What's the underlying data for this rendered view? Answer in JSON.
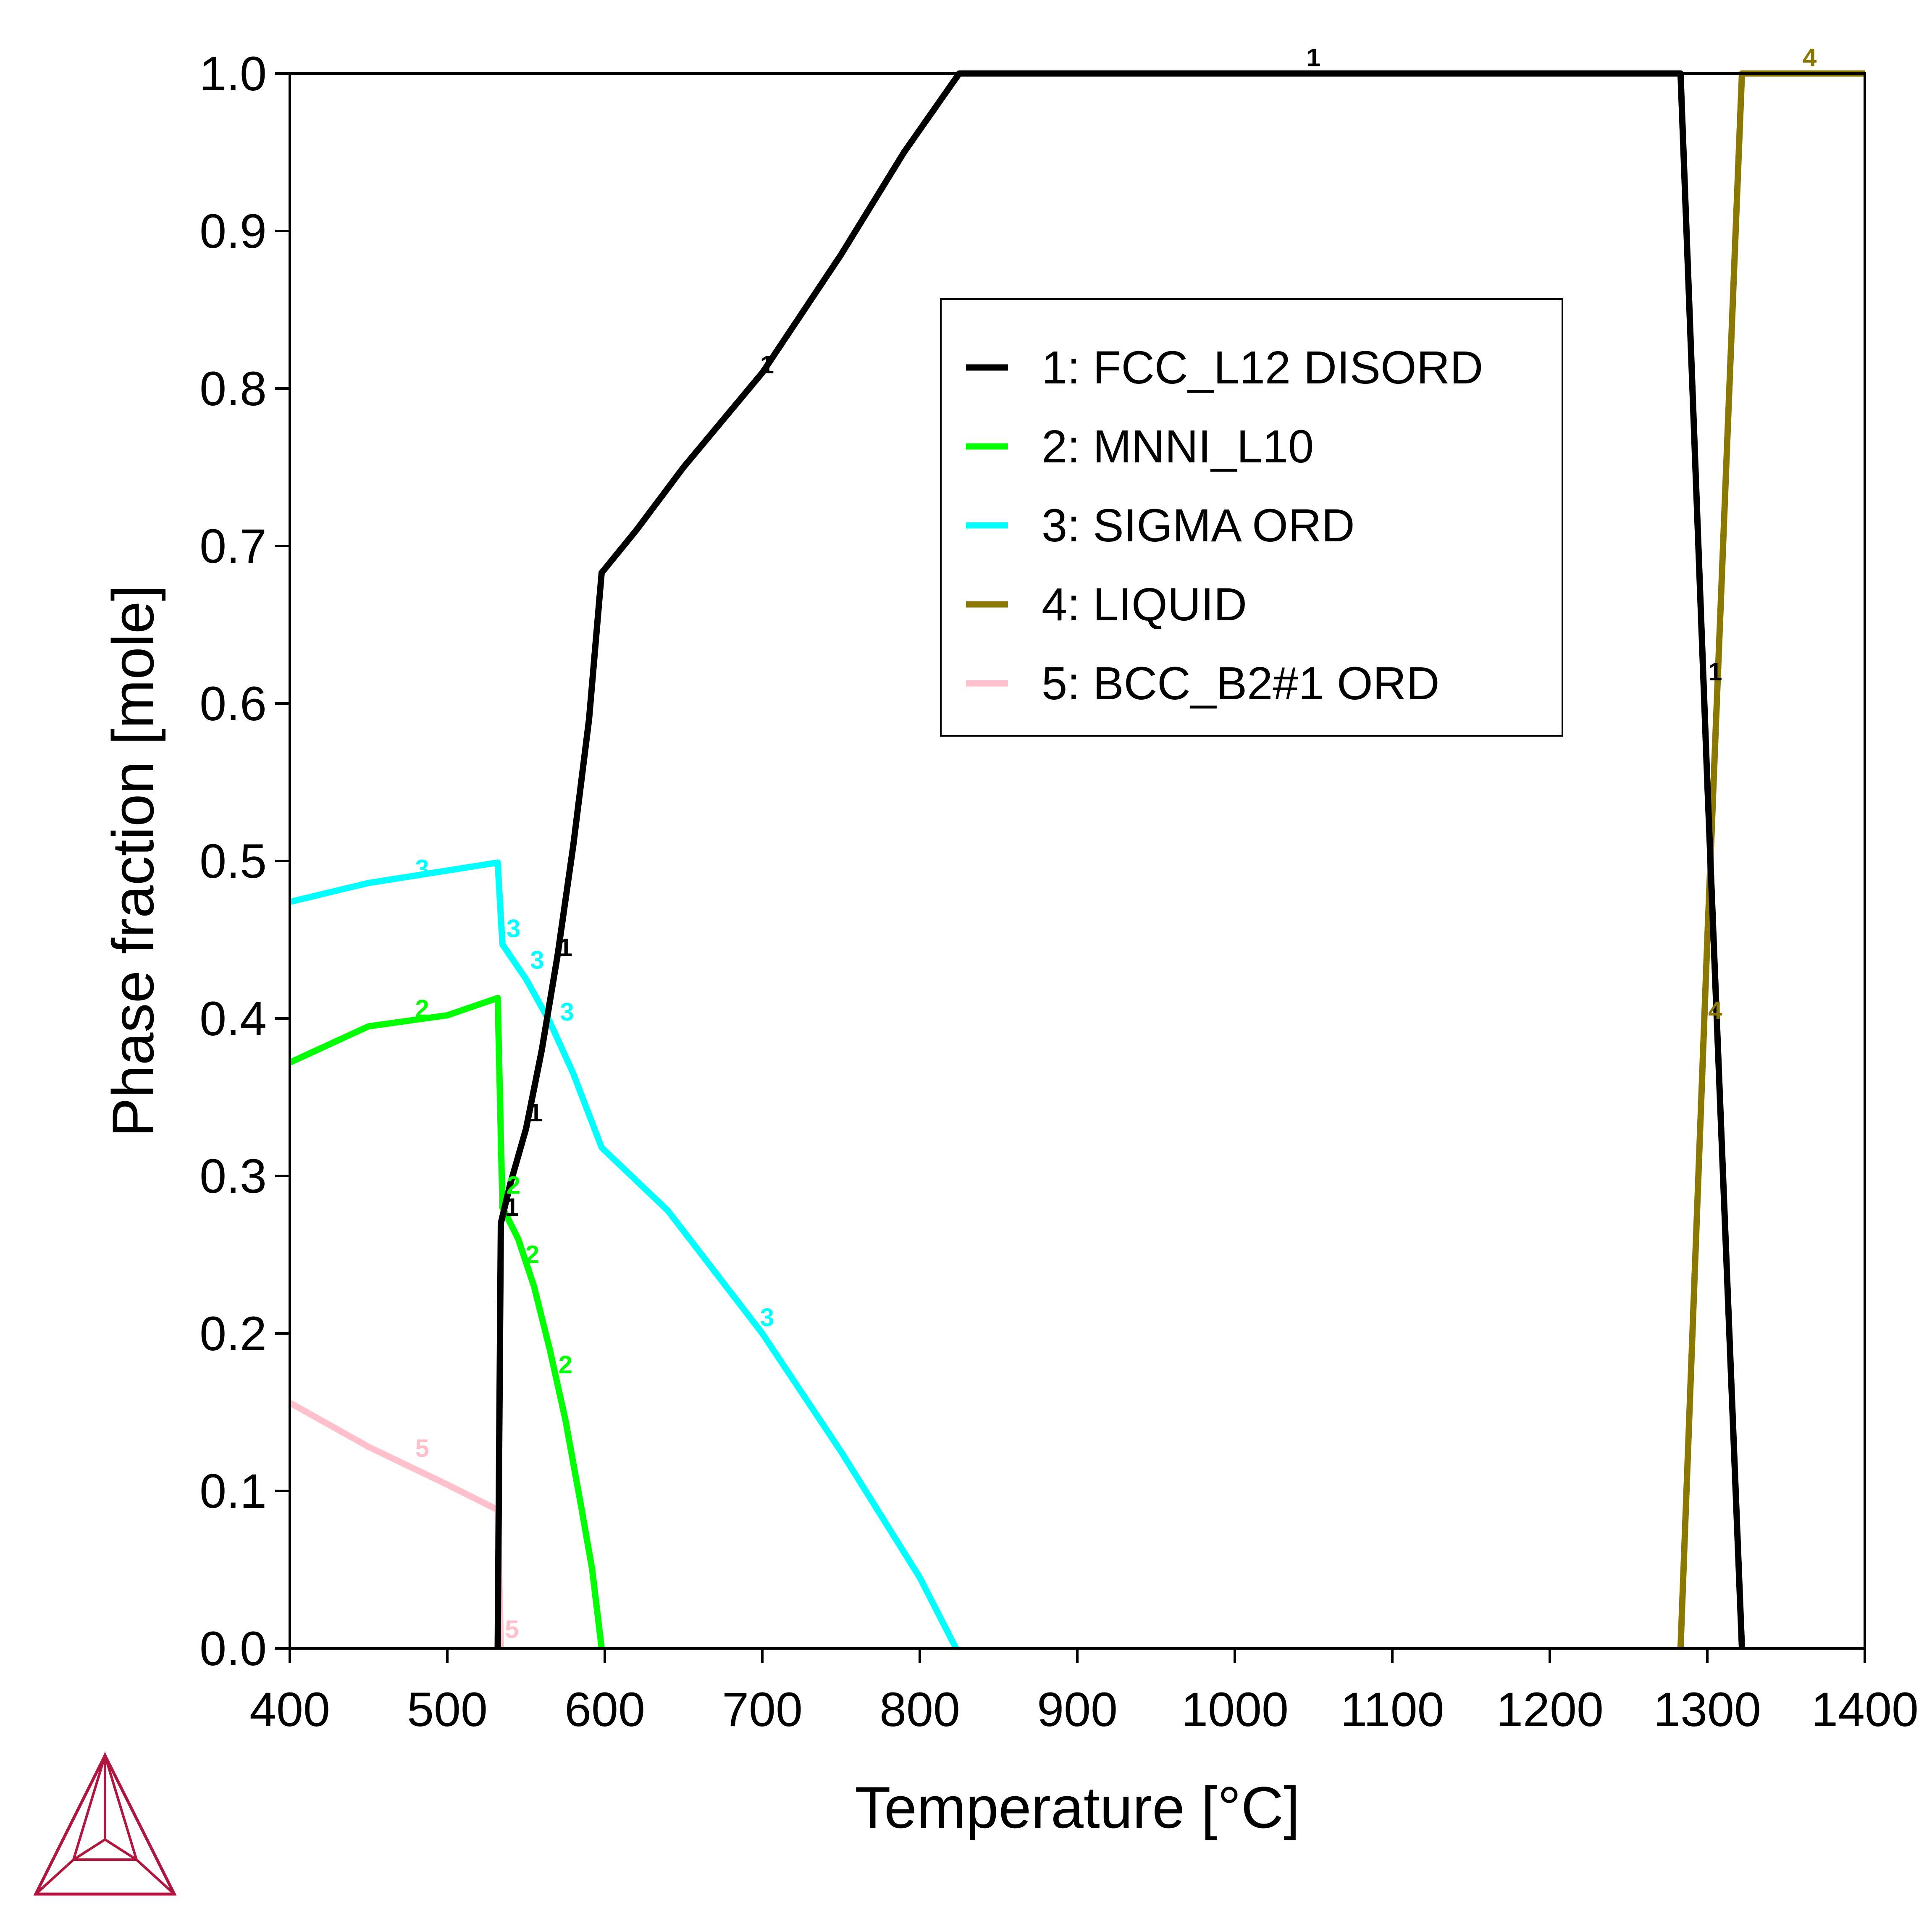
{
  "chart_data": {
    "type": "line",
    "xlabel": "Temperature [°C]",
    "ylabel": "Phase fraction [mole]",
    "xlim": [
      400,
      1400
    ],
    "ylim": [
      0,
      1
    ],
    "xticks": [
      400,
      500,
      600,
      700,
      800,
      900,
      1000,
      1100,
      1200,
      1300,
      1400
    ],
    "yticks": [
      0.0,
      0.1,
      0.2,
      0.3,
      0.4,
      0.5,
      0.6,
      0.7,
      0.8,
      0.9,
      1.0
    ],
    "xtick_labels": [
      "400",
      "500",
      "600",
      "700",
      "800",
      "900",
      "1000",
      "1100",
      "1200",
      "1300",
      "1400"
    ],
    "ytick_labels": [
      "0.0",
      "0.1",
      "0.2",
      "0.3",
      "0.4",
      "0.5",
      "0.6",
      "0.7",
      "0.8",
      "0.9",
      "1.0"
    ],
    "grid": false,
    "legend_position": "upper-right",
    "series": [
      {
        "id": "1",
        "name": "1: FCC_L12 DISORD",
        "color": "#000000",
        "points": [
          [
            532,
            0.0
          ],
          [
            534,
            0.27
          ],
          [
            540,
            0.295
          ],
          [
            550,
            0.33
          ],
          [
            560,
            0.38
          ],
          [
            570,
            0.44
          ],
          [
            580,
            0.51
          ],
          [
            590,
            0.59
          ],
          [
            598,
            0.683
          ],
          [
            620,
            0.71
          ],
          [
            650,
            0.75
          ],
          [
            700,
            0.81
          ],
          [
            750,
            0.885
          ],
          [
            790,
            0.95
          ],
          [
            825,
            1.0
          ],
          [
            1283,
            1.0
          ],
          [
            1300,
            0.55
          ],
          [
            1310,
            0.3
          ],
          [
            1322,
            0.0
          ]
        ],
        "labels": [
          [
            1050,
            1.01
          ],
          [
            703,
            0.815
          ],
          [
            575,
            0.445
          ],
          [
            556,
            0.34
          ],
          [
            541,
            0.28
          ],
          [
            1305,
            0.62
          ]
        ],
        "label_text": "1"
      },
      {
        "id": "2",
        "name": "2: MNNI_L10",
        "color": "#00ff00",
        "points": [
          [
            400,
            0.372
          ],
          [
            450,
            0.395
          ],
          [
            500,
            0.402
          ],
          [
            532,
            0.413
          ],
          [
            535,
            0.28
          ],
          [
            545,
            0.26
          ],
          [
            555,
            0.23
          ],
          [
            565,
            0.19
          ],
          [
            575,
            0.145
          ],
          [
            585,
            0.09
          ],
          [
            592,
            0.05
          ],
          [
            598,
            0.0
          ]
        ],
        "labels": [
          [
            484,
            0.406
          ],
          [
            542,
            0.294
          ],
          [
            554,
            0.25
          ],
          [
            575,
            0.18
          ]
        ],
        "label_text": "2"
      },
      {
        "id": "3",
        "name": "3: SIGMA ORD",
        "color": "#00ffff",
        "points": [
          [
            400,
            0.474
          ],
          [
            450,
            0.486
          ],
          [
            532,
            0.499
          ],
          [
            535,
            0.447
          ],
          [
            550,
            0.425
          ],
          [
            565,
            0.398
          ],
          [
            580,
            0.365
          ],
          [
            598,
            0.318
          ],
          [
            640,
            0.278
          ],
          [
            700,
            0.2
          ],
          [
            750,
            0.125
          ],
          [
            800,
            0.045
          ],
          [
            823,
            0.0
          ]
        ],
        "labels": [
          [
            484,
            0.495
          ],
          [
            542,
            0.457
          ],
          [
            557,
            0.437
          ],
          [
            576,
            0.404
          ],
          [
            703,
            0.21
          ]
        ],
        "label_text": "3"
      },
      {
        "id": "4",
        "name": "4: LIQUID",
        "color": "#8b7800",
        "points": [
          [
            1283,
            0.0
          ],
          [
            1300,
            0.45
          ],
          [
            1322,
            1.0
          ],
          [
            1400,
            1.0
          ]
        ],
        "labels": [
          [
            1365,
            1.01
          ],
          [
            1305,
            0.405
          ]
        ],
        "label_text": "4"
      },
      {
        "id": "5",
        "name": "5: BCC_B2#1 ORD",
        "color": "#ffbfcb",
        "points": [
          [
            400,
            0.156
          ],
          [
            450,
            0.128
          ],
          [
            500,
            0.104
          ],
          [
            532,
            0.088
          ],
          [
            534,
            0.0
          ]
        ],
        "labels": [
          [
            484,
            0.127
          ],
          [
            541,
            0.012
          ]
        ],
        "label_text": "5"
      }
    ]
  }
}
